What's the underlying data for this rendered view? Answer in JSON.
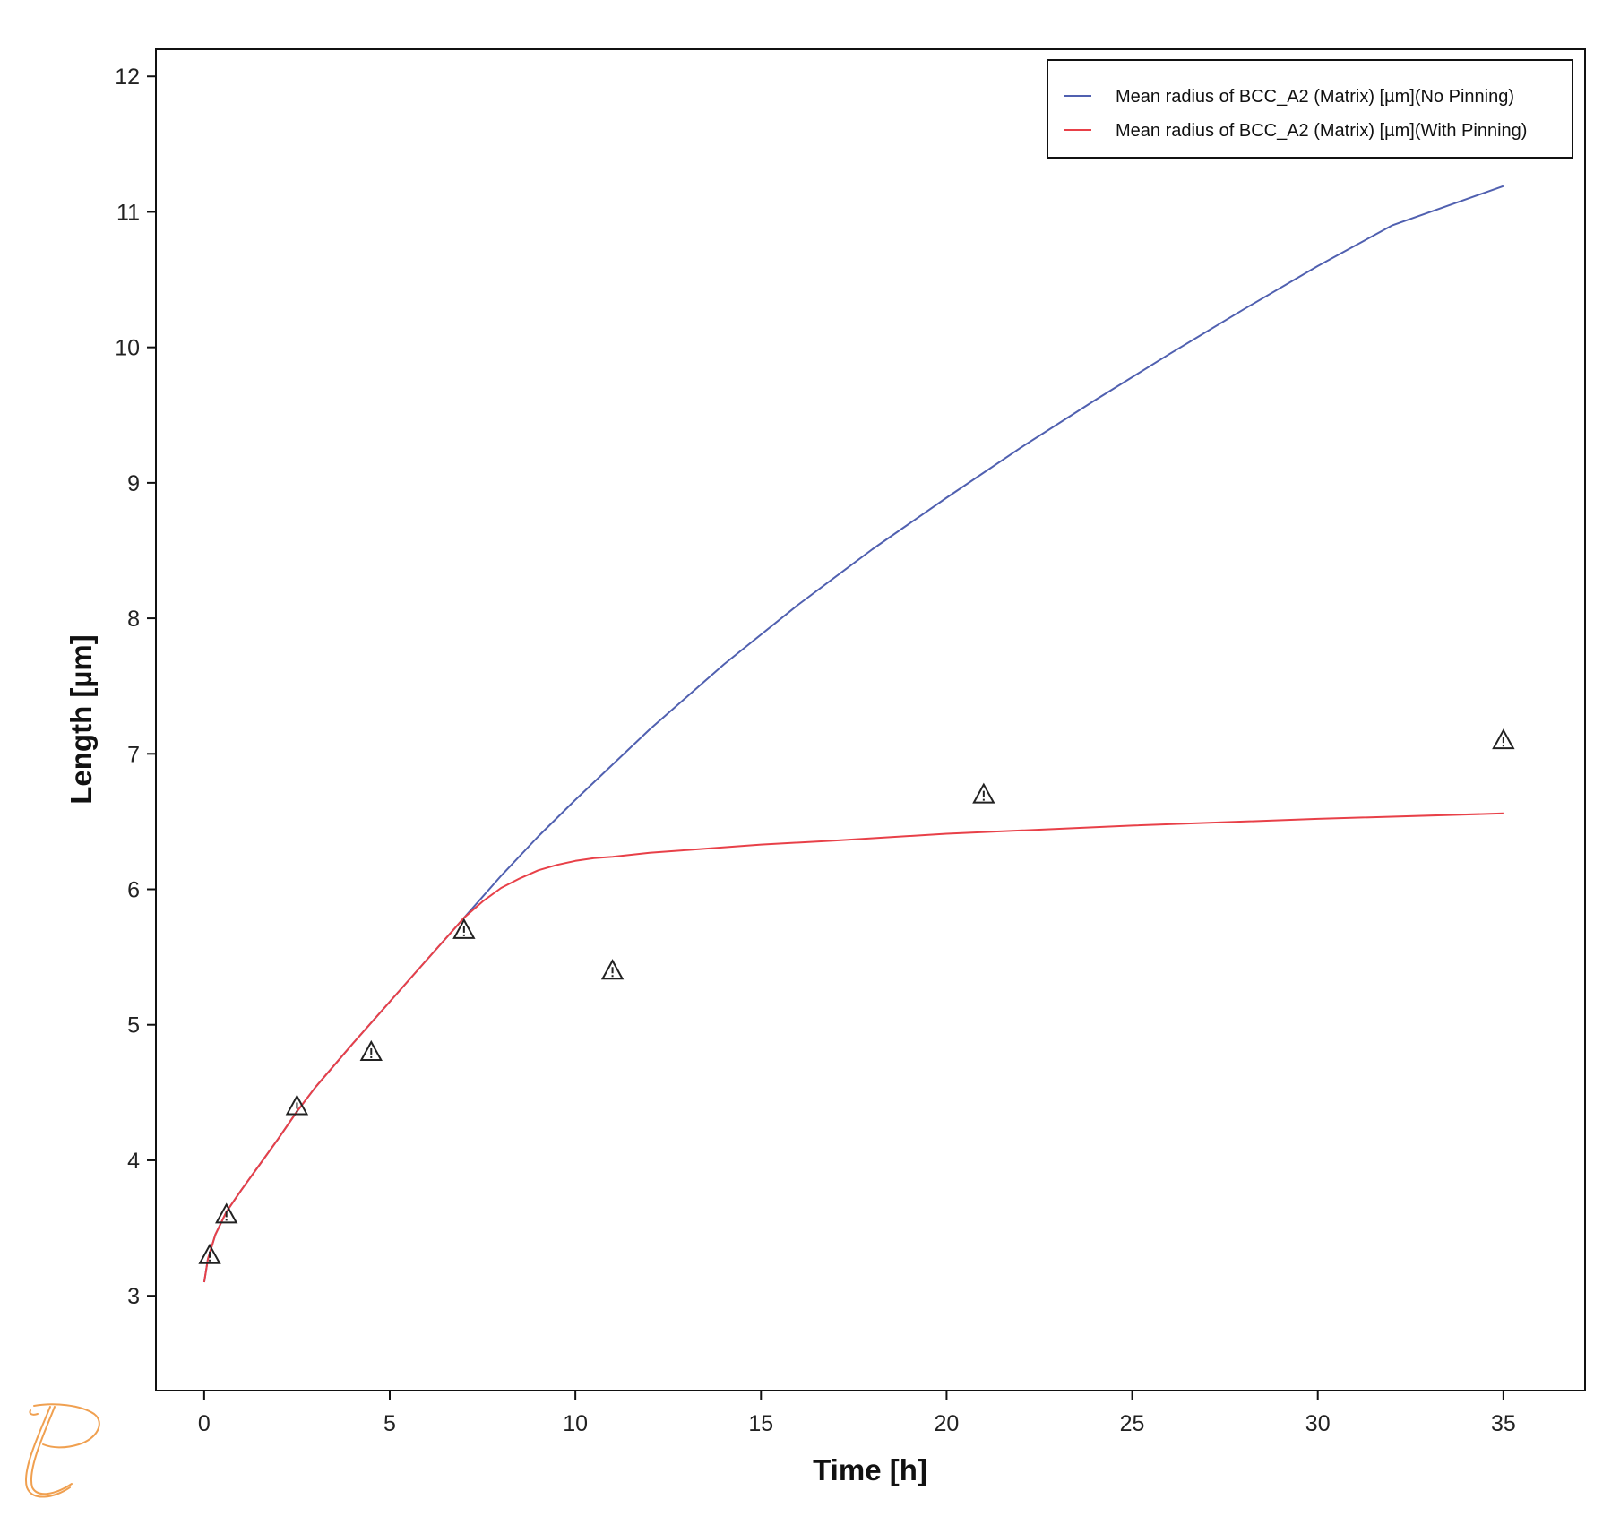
{
  "chart_data": {
    "type": "line",
    "xlabel": "Time [h]",
    "ylabel": "Length [µm]",
    "xlim": [
      -1.3,
      37.2
    ],
    "ylim": [
      2.3,
      12.2
    ],
    "xticks": [
      "0",
      "5",
      "10",
      "15",
      "20",
      "25",
      "30",
      "35"
    ],
    "yticks": [
      "3",
      "4",
      "5",
      "6",
      "7",
      "8",
      "9",
      "10",
      "11",
      "12"
    ],
    "grid": false,
    "legend_position": "top-right",
    "series": [
      {
        "name": "Mean radius of BCC_A2 (Matrix) [µm](No Pinning)",
        "color": "#5060b0",
        "x": [
          0,
          0.1,
          0.3,
          0.6,
          1,
          1.5,
          2,
          2.5,
          3,
          4,
          5,
          6,
          7,
          8,
          9,
          10,
          12,
          14,
          16,
          18,
          20,
          22,
          24,
          26,
          28,
          30,
          32,
          35
        ],
        "y": [
          3.1,
          3.27,
          3.45,
          3.62,
          3.78,
          3.97,
          4.16,
          4.36,
          4.54,
          4.86,
          5.17,
          5.48,
          5.79,
          6.1,
          6.39,
          6.66,
          7.18,
          7.66,
          8.1,
          8.51,
          8.89,
          9.26,
          9.61,
          9.95,
          10.28,
          10.6,
          10.9,
          11.19
        ]
      },
      {
        "name": "Mean radius of BCC_A2 (Matrix) [µm](With Pinning)",
        "color": "#e84048",
        "x": [
          0,
          0.1,
          0.3,
          0.6,
          1,
          1.5,
          2,
          2.5,
          3,
          4,
          5,
          6,
          7,
          7.5,
          8,
          8.5,
          9,
          9.5,
          10,
          10.5,
          11,
          12,
          13,
          15,
          17,
          20,
          25,
          30,
          35
        ],
        "y": [
          3.1,
          3.27,
          3.45,
          3.62,
          3.78,
          3.97,
          4.16,
          4.36,
          4.54,
          4.86,
          5.17,
          5.48,
          5.79,
          5.91,
          6.01,
          6.08,
          6.14,
          6.18,
          6.21,
          6.23,
          6.24,
          6.27,
          6.29,
          6.33,
          6.36,
          6.41,
          6.47,
          6.52,
          6.56
        ]
      },
      {
        "name": "",
        "marker": "triangle",
        "color": "#222222",
        "x": [
          0.15,
          0.6,
          2.5,
          4.5,
          7,
          11,
          21,
          35
        ],
        "y": [
          3.3,
          3.6,
          4.4,
          4.8,
          5.7,
          5.4,
          6.7,
          7.1
        ]
      }
    ]
  },
  "logo": {
    "name": "thermo-calc-logo",
    "color": "#f0a050"
  }
}
